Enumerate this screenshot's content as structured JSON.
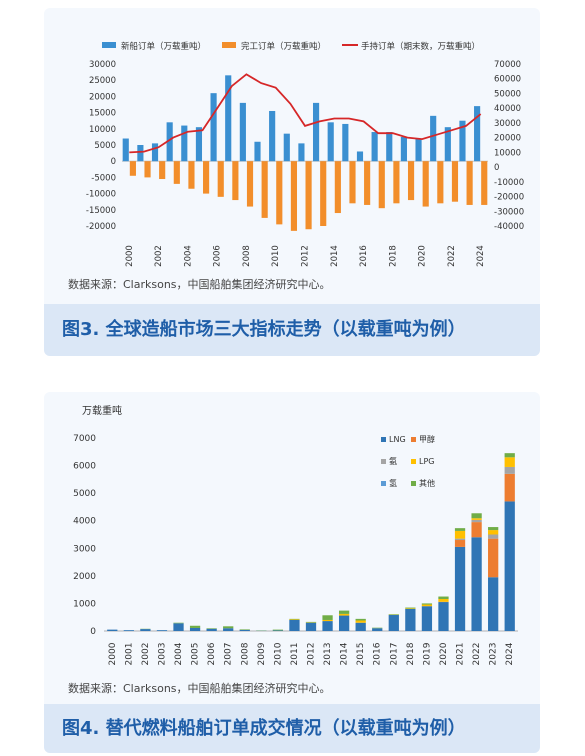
{
  "figure3": {
    "caption": "图3. 全球造船市场三大指标走势（以载重吨为例）",
    "source": "数据来源：Clarksons，中国船舶集团经济研究中心。"
  },
  "figure4": {
    "caption": "图4. 替代燃料船舶订单成交情况（以载重吨为例）",
    "source": "数据来源：Clarksons，中国船舶集团经济研究中心。"
  },
  "chart_data": [
    {
      "type": "bar",
      "title": "",
      "categories": [
        "2000",
        "2001",
        "2002",
        "2003",
        "2004",
        "2005",
        "2006",
        "2007",
        "2008",
        "2009",
        "2010",
        "2011",
        "2012",
        "2013",
        "2014",
        "2015",
        "2016",
        "2017",
        "2018",
        "2019",
        "2020",
        "2021",
        "2022",
        "2023",
        "2024"
      ],
      "x_tick_labels": [
        "2000",
        "2002",
        "2004",
        "2006",
        "2008",
        "2010",
        "2012",
        "2014",
        "2016",
        "2018",
        "2020",
        "2022",
        "2024"
      ],
      "series": [
        {
          "name": "新船订单（万载重吨）",
          "kind": "bar",
          "axis": "left",
          "color": "#3a8fd1",
          "values": [
            7000,
            5000,
            5500,
            12000,
            11000,
            10500,
            21000,
            26500,
            18000,
            6000,
            15500,
            8500,
            5500,
            18000,
            12000,
            11500,
            3000,
            9000,
            9000,
            7500,
            7000,
            14000,
            10500,
            12500,
            17000
          ]
        },
        {
          "name": "完工订单（万载重吨）",
          "kind": "bar",
          "axis": "left",
          "color": "#f28e2b",
          "values": [
            -4500,
            -5000,
            -5500,
            -7000,
            -8500,
            -10000,
            -11000,
            -12000,
            -14000,
            -17500,
            -19500,
            -21500,
            -21000,
            -20000,
            -16000,
            -13000,
            -13500,
            -14500,
            -13000,
            -12000,
            -14000,
            -13000,
            -12500,
            -13500,
            -13500
          ]
        },
        {
          "name": "手持订单（期末数，万载重吨）",
          "kind": "line",
          "axis": "right",
          "color": "#d62728",
          "values": [
            10000,
            10500,
            13500,
            20000,
            24000,
            25000,
            40000,
            55000,
            63000,
            57000,
            54000,
            43000,
            28000,
            31000,
            33000,
            33000,
            31000,
            23000,
            23000,
            20000,
            19000,
            22000,
            25000,
            28000,
            36000
          ]
        }
      ],
      "ylim_left": [
        -20000,
        30000
      ],
      "yticks_left": [
        "30000",
        "25000",
        "20000",
        "15000",
        "10000",
        "5000",
        "0",
        "-5000",
        "-10000",
        "-15000",
        "-20000"
      ],
      "ylim_right": [
        -40000,
        70000
      ],
      "yticks_right": [
        "70000",
        "60000",
        "50000",
        "40000",
        "30000",
        "20000",
        "10000",
        "0",
        "-10000",
        "-20000",
        "-30000",
        "-40000"
      ],
      "legend_position": "top",
      "grid": false
    },
    {
      "type": "bar",
      "stacked": true,
      "title": "",
      "ylabel": "万载重吨",
      "categories": [
        "2000",
        "2001",
        "2002",
        "2003",
        "2004",
        "2005",
        "2006",
        "2007",
        "2008",
        "2009",
        "2010",
        "2011",
        "2012",
        "2013",
        "2014",
        "2015",
        "2016",
        "2017",
        "2018",
        "2019",
        "2020",
        "2021",
        "2022",
        "2023",
        "2024"
      ],
      "series": [
        {
          "name": "LNG",
          "color": "#2f75b5",
          "values": [
            50,
            30,
            70,
            30,
            280,
            110,
            80,
            100,
            40,
            10,
            20,
            400,
            300,
            360,
            560,
            300,
            100,
            580,
            800,
            900,
            1050,
            3050,
            3400,
            1950,
            4700
          ]
        },
        {
          "name": "甲醇",
          "color": "#ed7d31",
          "values": [
            0,
            0,
            0,
            0,
            0,
            0,
            0,
            0,
            0,
            0,
            0,
            0,
            0,
            0,
            0,
            0,
            0,
            0,
            0,
            0,
            10,
            250,
            550,
            1400,
            1000
          ]
        },
        {
          "name": "氨",
          "color": "#a5a5a5",
          "values": [
            0,
            0,
            0,
            0,
            0,
            0,
            0,
            0,
            0,
            0,
            0,
            0,
            0,
            0,
            0,
            0,
            0,
            0,
            0,
            0,
            0,
            50,
            80,
            150,
            250
          ]
        },
        {
          "name": "LPG",
          "color": "#ffc000",
          "values": [
            0,
            0,
            0,
            0,
            0,
            0,
            0,
            0,
            0,
            0,
            0,
            20,
            10,
            40,
            60,
            80,
            0,
            10,
            20,
            60,
            100,
            280,
            60,
            160,
            350
          ]
        },
        {
          "name": "氢",
          "color": "#5b9bd5",
          "values": [
            0,
            0,
            0,
            0,
            0,
            0,
            0,
            0,
            0,
            0,
            0,
            0,
            0,
            0,
            0,
            0,
            0,
            0,
            0,
            0,
            0,
            0,
            0,
            0,
            0
          ]
        },
        {
          "name": "其他",
          "color": "#70ad47",
          "values": [
            0,
            0,
            10,
            0,
            20,
            80,
            20,
            70,
            20,
            10,
            30,
            20,
            20,
            170,
            120,
            60,
            20,
            20,
            30,
            40,
            90,
            100,
            180,
            110,
            150
          ]
        }
      ],
      "ylim": [
        0,
        7000
      ],
      "yticks": [
        "7000",
        "6000",
        "5000",
        "4000",
        "3000",
        "2000",
        "1000",
        "0"
      ],
      "legend_position": "top-right",
      "grid": false
    }
  ]
}
